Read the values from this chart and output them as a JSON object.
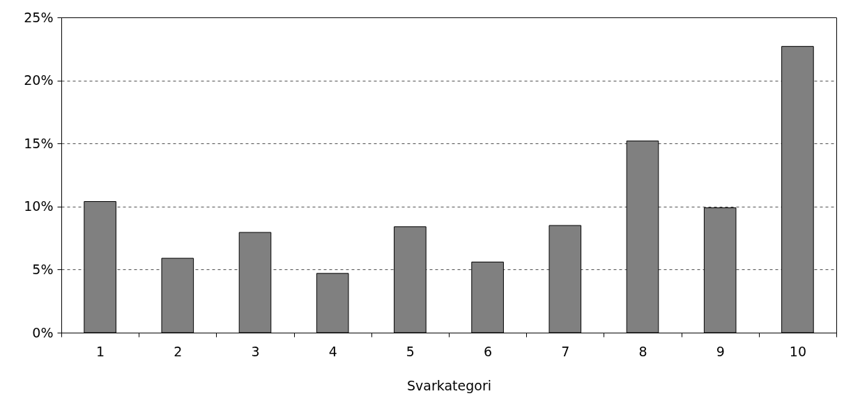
{
  "chart_data": {
    "type": "bar",
    "xlabel": "Svarkategori",
    "categories": [
      "1",
      "2",
      "3",
      "4",
      "5",
      "6",
      "7",
      "8",
      "9",
      "10"
    ],
    "values": [
      10.4,
      5.9,
      7.95,
      4.7,
      8.4,
      5.6,
      8.5,
      15.2,
      9.9,
      22.7
    ],
    "color": "#808080",
    "ylim": [
      0,
      25
    ],
    "yticks": [
      {
        "value": 0,
        "label": "0%"
      },
      {
        "value": 5,
        "label": "5%"
      },
      {
        "value": 10,
        "label": "10%"
      },
      {
        "value": 15,
        "label": "15%"
      },
      {
        "value": 20,
        "label": "20%"
      },
      {
        "value": 25,
        "label": "25%"
      }
    ],
    "grid": "y"
  }
}
